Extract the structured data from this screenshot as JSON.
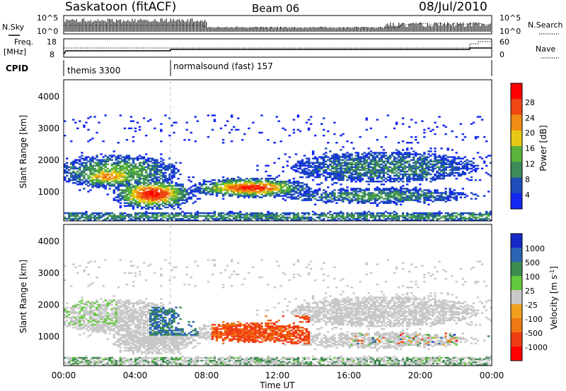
{
  "header": {
    "station": "Saskatoon (fitACF)",
    "beam": "Beam 06",
    "date": "08/Jul/2010"
  },
  "noise_panel": {
    "left_label": "N.Sky",
    "right_label": "N.Search",
    "left_ticks": [
      "10^5",
      "10^0"
    ],
    "right_ticks": [
      "10^5",
      "10^0"
    ]
  },
  "freq_panel": {
    "left_label_1": "Freq.",
    "left_label_2": "[MHz]",
    "right_label": "Nave",
    "left_ticks": [
      "18",
      "8"
    ],
    "right_ticks": [
      "60",
      "0"
    ]
  },
  "cpid_panel": {
    "label": "CPID",
    "segments": [
      {
        "name": "themis 3300",
        "start_hour": 0,
        "end_hour": 6
      },
      {
        "name": "normalsound (fast) 157",
        "start_hour": 6,
        "end_hour": 24
      }
    ]
  },
  "chart_data": [
    {
      "type": "heatmap",
      "title": "Power",
      "xlabel": "Time UT",
      "ylabel": "Slant Range [km]",
      "xlim_hours": [
        0,
        24
      ],
      "ylim_km": [
        180,
        4600
      ],
      "x_ticks": [
        "00:00",
        "04:00",
        "08:00",
        "12:00",
        "16:00",
        "20:00",
        "00:00"
      ],
      "y_ticks": [
        1000,
        2000,
        3000,
        4000
      ],
      "colorbar_label": "Power [dB]",
      "colorbar_ticks": [
        4,
        8,
        12,
        16,
        20,
        24,
        28
      ],
      "colorbar_colors": [
        "#1428f0",
        "#1d4db8",
        "#3c8c5a",
        "#5ab43c",
        "#e6c814",
        "#f08c14",
        "#f04614",
        "#ff0000"
      ],
      "regions": [
        {
          "t0": 0.0,
          "t1": 6.0,
          "r0": 1100,
          "r1": 2300,
          "level": "medium"
        },
        {
          "t0": 1.0,
          "t1": 7.0,
          "r0": 550,
          "r1": 1500,
          "level": "high"
        },
        {
          "t0": 8.0,
          "t1": 13.5,
          "r0": 900,
          "r1": 1500,
          "level": "high"
        },
        {
          "t0": 12.0,
          "t1": 24.0,
          "r0": 700,
          "r1": 1200,
          "level": "low"
        },
        {
          "t0": 14.0,
          "t1": 23.5,
          "r0": 1300,
          "r1": 2500,
          "level": "low"
        },
        {
          "t0": 0.0,
          "t1": 24.0,
          "r0": 180,
          "r1": 400,
          "level": "low"
        }
      ]
    },
    {
      "type": "heatmap",
      "title": "Velocity",
      "xlabel": "Time UT",
      "ylabel": "Slant Range [km]",
      "xlim_hours": [
        0,
        24
      ],
      "ylim_km": [
        180,
        4600
      ],
      "x_ticks": [
        "00:00",
        "04:00",
        "08:00",
        "12:00",
        "16:00",
        "20:00",
        "00:00"
      ],
      "y_ticks": [
        1000,
        2000,
        3000,
        4000
      ],
      "colorbar_label": "Velocity [m s^-1]",
      "colorbar_ticks": [
        "1000",
        "500",
        "100",
        "25",
        "-25",
        "-100",
        "-500",
        "-1000"
      ],
      "colorbar_colors": [
        "#1428c8",
        "#2d64b4",
        "#3c8c50",
        "#64c83c",
        "#c8c8c8",
        "#f0a01e",
        "#f07814",
        "#f03c14",
        "#ff0000"
      ],
      "regions": [
        {
          "t0": 0.0,
          "t1": 6.0,
          "r0": 1100,
          "r1": 2300,
          "level": "near-zero"
        },
        {
          "t0": 5.0,
          "t1": 7.5,
          "r0": 1100,
          "r1": 2000,
          "level": "positive"
        },
        {
          "t0": 8.5,
          "t1": 13.5,
          "r0": 900,
          "r1": 1700,
          "level": "negative"
        },
        {
          "t0": 12.0,
          "t1": 23.0,
          "r0": 700,
          "r1": 2500,
          "level": "near-zero"
        },
        {
          "t0": 0.0,
          "t1": 24.0,
          "r0": 180,
          "r1": 400,
          "level": "positive"
        }
      ]
    }
  ]
}
